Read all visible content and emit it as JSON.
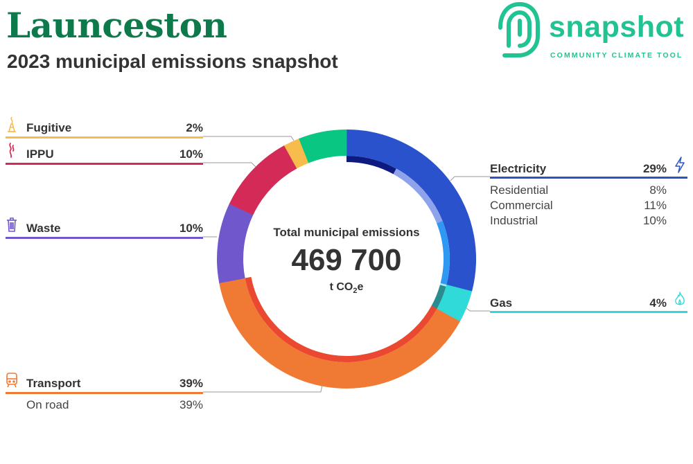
{
  "header": {
    "title": "Launceston",
    "subtitle": "2023 municipal emissions snapshot"
  },
  "logo": {
    "wordmark": "snapshot",
    "tagline": "COMMUNITY CLIMATE TOOL",
    "color": "#22c393"
  },
  "center": {
    "label": "Total municipal emissions",
    "value": "469 700",
    "unit_prefix": "t CO",
    "unit_sub": "2",
    "unit_suffix": "e"
  },
  "chart_data": {
    "type": "pie",
    "variant": "donut",
    "title": "Total municipal emissions",
    "total": 469700,
    "unit": "t CO2e",
    "slices": [
      {
        "key": "electricity",
        "name": "Electricity",
        "percent": 29,
        "color": "#2a52cc",
        "icon": "lightning-icon",
        "sub": [
          {
            "name": "Residential",
            "percent": 8,
            "color": "#0d1a80"
          },
          {
            "name": "Commercial",
            "percent": 11,
            "color": "#8ea3ec"
          },
          {
            "name": "Industrial",
            "percent": 10,
            "color": "#2f98f2"
          }
        ]
      },
      {
        "key": "gas",
        "name": "Gas",
        "percent": 4,
        "color": "#2fdad8",
        "icon": "flame-icon",
        "sub": [
          {
            "name": "",
            "percent": 0.3,
            "color": "#a7ecec"
          },
          {
            "name": "",
            "percent": 3.7,
            "color": "#2a8c90"
          }
        ]
      },
      {
        "key": "transport",
        "name": "Transport",
        "percent": 39,
        "color": "#f07a34",
        "icon": "train-icon",
        "sub": [
          {
            "name": "On road",
            "percent": 39,
            "color": "#ea4830"
          }
        ]
      },
      {
        "key": "waste",
        "name": "Waste",
        "percent": 10,
        "color": "#7057cc",
        "icon": "trash-icon",
        "sub": []
      },
      {
        "key": "ippu",
        "name": "IPPU",
        "percent": 10,
        "color": "#d42a57",
        "icon": "smokestack-icon",
        "sub": []
      },
      {
        "key": "fugitive",
        "name": "Fugitive",
        "percent": 2,
        "color": "#f8bc4c",
        "icon": "gas-flare-icon",
        "sub": []
      },
      {
        "key": "unlabeled",
        "name": "",
        "percent": 6,
        "color": "#09c682",
        "icon": "",
        "sub": []
      }
    ]
  },
  "legend": {
    "fugitive": {
      "label": "Fugitive",
      "value": "2%"
    },
    "ippu": {
      "label": "IPPU",
      "value": "10%"
    },
    "waste": {
      "label": "Waste",
      "value": "10%"
    },
    "transport": {
      "label": "Transport",
      "value": "39%",
      "sub": [
        {
          "label": "On road",
          "value": "39%"
        }
      ]
    },
    "electricity": {
      "label": "Electricity",
      "value": "29%",
      "sub": [
        {
          "label": "Residential",
          "value": "8%"
        },
        {
          "label": "Commercial",
          "value": "11%"
        },
        {
          "label": "Industrial",
          "value": "10%"
        }
      ]
    },
    "gas": {
      "label": "Gas",
      "value": "4%"
    }
  }
}
